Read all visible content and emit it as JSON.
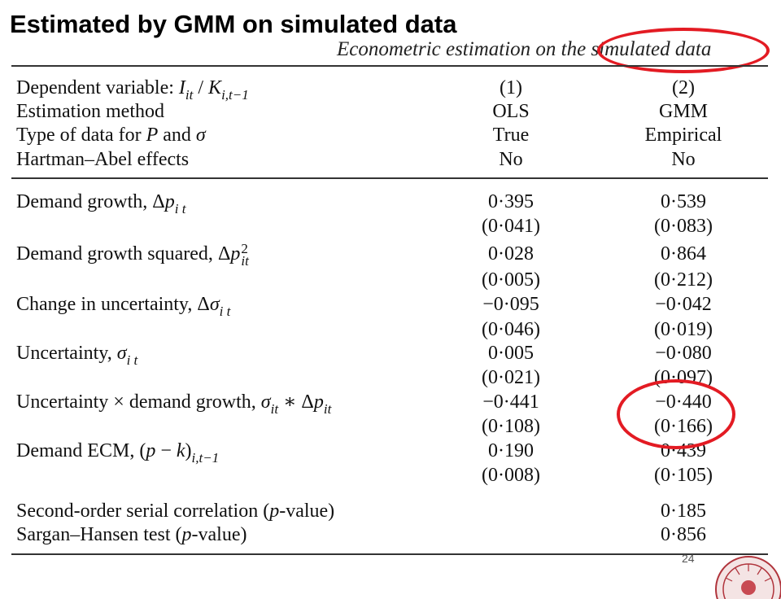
{
  "title": "Estimated by GMM on simulated data",
  "caption": "Econometric estimation on the simulated data",
  "header_rows": [
    {
      "label": "Dependent variable: ",
      "c1": "(1)",
      "c2": "(2)"
    },
    {
      "label": "Estimation method",
      "c1": "OLS",
      "c2": "GMM"
    },
    {
      "label_pre": "Type of data for ",
      "label_var1": "P",
      "label_mid": " and ",
      "label_var2": "σ",
      "c1": "True",
      "c2": "Empirical"
    },
    {
      "label": "Hartman–Abel effects",
      "c1": "No",
      "c2": "No"
    }
  ],
  "coef_rows": [
    {
      "label": "Demand growth, ",
      "c1": "0·395",
      "c2": "0·539",
      "se1": "(0·041)",
      "se2": "(0·083)"
    },
    {
      "label": "Demand growth squared, ",
      "c1": "0·028",
      "c2": "0·864",
      "se1": "(0·005)",
      "se2": "(0·212)"
    },
    {
      "label": "Change in uncertainty, ",
      "c1": "−0·095",
      "c2": "−0·042",
      "se1": "(0·046)",
      "se2": "(0·019)"
    },
    {
      "label": "Uncertainty, ",
      "c1": "0·005",
      "c2": "−0·080",
      "se1": "(0·021)",
      "se2": "(0·097)"
    },
    {
      "label": "Uncertainty × demand growth, ",
      "c1": "−0·441",
      "c2": "−0·440",
      "se1": "(0·108)",
      "se2": "(0·166)"
    },
    {
      "label": "Demand ECM, ",
      "c1": "0·190",
      "c2": "0·439",
      "se1": "(0·008)",
      "se2": "(0·105)"
    }
  ],
  "test_rows": [
    {
      "label_pre": "Second-order serial correlation (",
      "label_var": "p",
      "label_post": "-value)",
      "c2": "0·185"
    },
    {
      "label_pre": "Sargan–Hansen test (",
      "label_var": "p",
      "label_post": "-value)",
      "c2": "0·856"
    }
  ],
  "page_number": "24",
  "annotation_color": "#e31b23"
}
